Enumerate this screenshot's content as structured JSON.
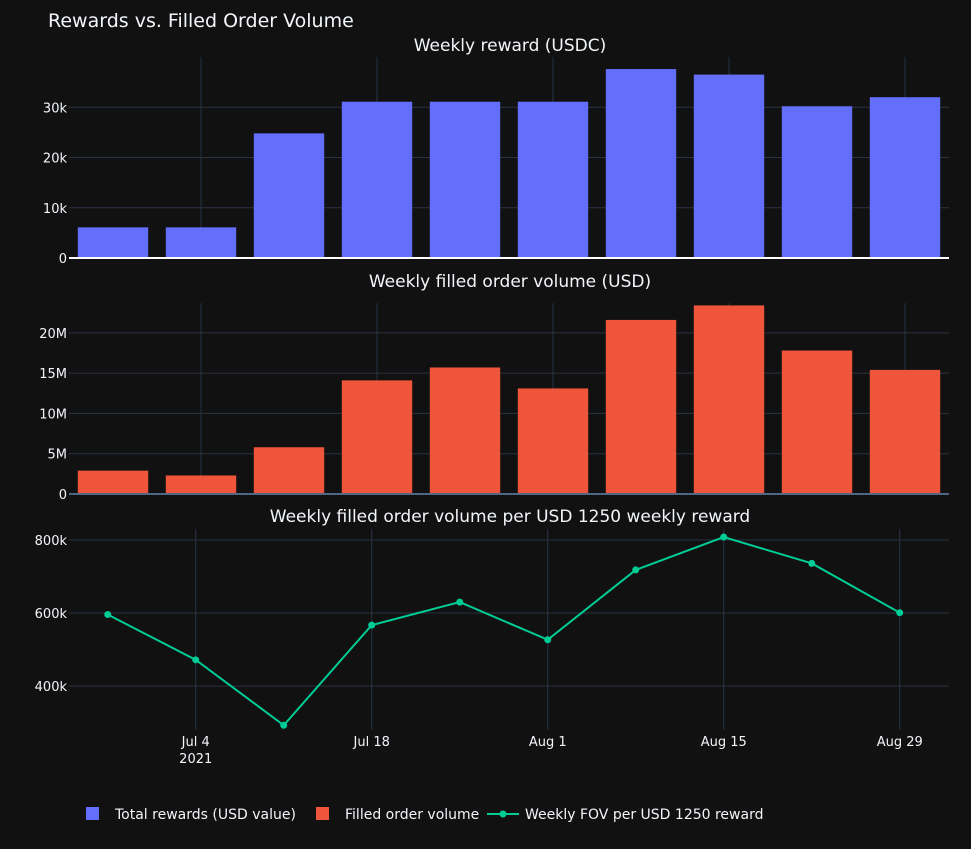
{
  "colors": {
    "background": "#111111",
    "grid": "#283442",
    "text": "#f2f5fa",
    "reward": "#636efa",
    "volume": "#ef553b",
    "ratio": "#00cc96"
  },
  "chart_data": {
    "type": "bar",
    "title": "Rewards vs. Filled Order Volume",
    "x_dates": [
      "Jun 27",
      "Jul 4",
      "Jul 11",
      "Jul 18",
      "Jul 25",
      "Aug 1",
      "Aug 8",
      "Aug 15",
      "Aug 22",
      "Aug 29"
    ],
    "x_ticks": [
      {
        "label": "Jul 4",
        "sub": "2021",
        "pos": 1
      },
      {
        "label": "Jul 18",
        "sub": "",
        "pos": 3
      },
      {
        "label": "Aug 1",
        "sub": "",
        "pos": 5
      },
      {
        "label": "Aug 15",
        "sub": "",
        "pos": 7
      },
      {
        "label": "Aug 29",
        "sub": "",
        "pos": 9
      }
    ],
    "panels": [
      {
        "type": "bar",
        "title": "Weekly reward (USDC)",
        "series_name": "Total rewards (USD value)",
        "values": [
          6100,
          6100,
          24800,
          31100,
          31100,
          31100,
          37600,
          36500,
          30200,
          32000
        ],
        "ylim": [
          0,
          40000
        ],
        "yticks": [
          0,
          10000,
          20000,
          30000
        ],
        "ytick_labels": [
          "0",
          "10k",
          "20k",
          "30k"
        ]
      },
      {
        "type": "bar",
        "title": "Weekly filled order volume (USD)",
        "series_name": "Filled order volume",
        "values": [
          2900000,
          2300000,
          5800000,
          14100000,
          15700000,
          13100000,
          21600000,
          23400000,
          17800000,
          15400000
        ],
        "ylim": [
          0,
          23700000
        ],
        "yticks": [
          0,
          5000000,
          10000000,
          15000000,
          20000000
        ],
        "ytick_labels": [
          "0",
          "5M",
          "10M",
          "15M",
          "20M"
        ]
      },
      {
        "type": "line",
        "title": "Weekly filled order volume per USD 1250 weekly reward",
        "series_name": "Weekly FOV per USD 1250 reward",
        "x_offset": -0.06,
        "values": [
          596000,
          472000,
          293000,
          567000,
          630000,
          527000,
          718000,
          808000,
          736000,
          601000
        ],
        "ylim": [
          280000,
          830000
        ],
        "yticks": [
          400000,
          600000,
          800000
        ],
        "ytick_labels": [
          "400k",
          "600k",
          "800k"
        ]
      }
    ],
    "legend": [
      {
        "label": "Total rewards (USD value)",
        "kind": "square",
        "color_key": "reward"
      },
      {
        "label": "Filled order volume",
        "kind": "square",
        "color_key": "volume"
      },
      {
        "label": "Weekly FOV per USD 1250 reward",
        "kind": "line",
        "color_key": "ratio"
      }
    ],
    "legend_position": "bottom"
  }
}
